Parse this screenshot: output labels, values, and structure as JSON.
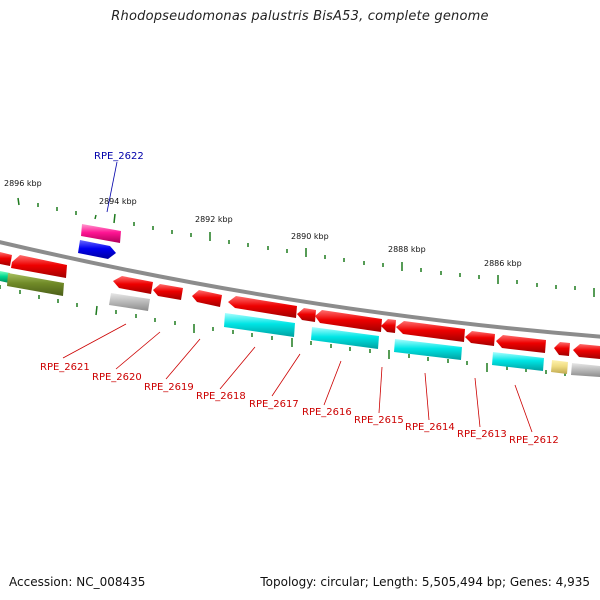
{
  "title": "Rhodopseudomonas palustris BisA53, complete genome",
  "footer": {
    "accession": "Accession: NC_008435",
    "stats": "Topology: circular; Length: 5,505,494 bp; Genes: 4,935"
  },
  "colors": {
    "backbone": "#8c8c8c",
    "tick": "#1e7a1e",
    "label_red": "#cc0000",
    "label_blue": "#0000aa"
  },
  "kbp_labels": [
    "2896 kbp",
    "2894 kbp",
    "2892 kbp",
    "2890 kbp",
    "2888 kbp",
    "2886 kbp"
  ],
  "gene_labels": [
    {
      "text": "RPE_2622",
      "color": "blue"
    },
    {
      "text": "RPE_2621",
      "color": "red"
    },
    {
      "text": "RPE_2620",
      "color": "red"
    },
    {
      "text": "RPE_2619",
      "color": "red"
    },
    {
      "text": "RPE_2618",
      "color": "red"
    },
    {
      "text": "RPE_2617",
      "color": "red"
    },
    {
      "text": "RPE_2616",
      "color": "red"
    },
    {
      "text": "RPE_2615",
      "color": "red"
    },
    {
      "text": "RPE_2614",
      "color": "red"
    },
    {
      "text": "RPE_2613",
      "color": "red"
    },
    {
      "text": "RPE_2612",
      "color": "red"
    }
  ]
}
